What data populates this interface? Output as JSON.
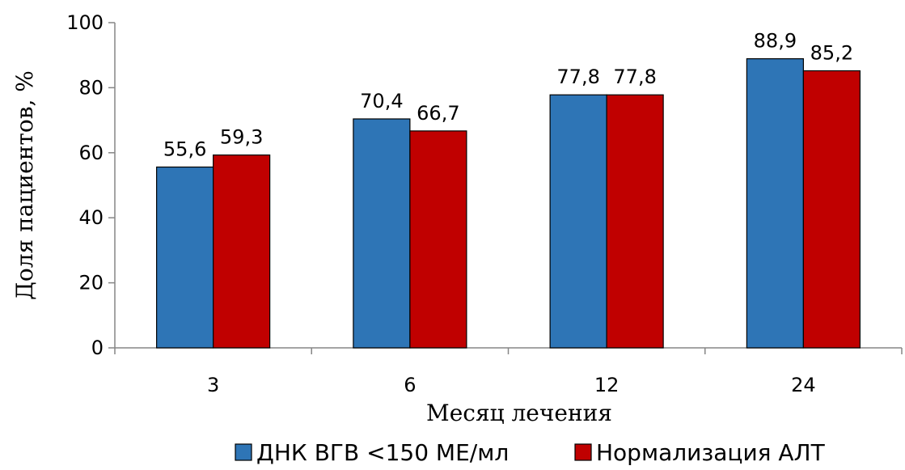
{
  "chart_data": {
    "type": "bar",
    "categories": [
      "3",
      "6",
      "12",
      "24"
    ],
    "series": [
      {
        "name": "ДНК ВГВ <150 МЕ/мл",
        "values": [
          55.6,
          70.4,
          77.8,
          88.9
        ],
        "labels": [
          "55,6",
          "70,4",
          "77,8",
          "88,9"
        ],
        "color": "#2e75b6"
      },
      {
        "name": "Нормализация АЛТ",
        "values": [
          59.3,
          66.7,
          77.8,
          85.2
        ],
        "labels": [
          "59,3",
          "66,7",
          "77,8",
          "85,2"
        ],
        "color": "#c00000"
      }
    ],
    "xlabel": "Месяц лечения",
    "ylabel": "Доля пациентов,  %",
    "ylim": [
      0,
      100
    ],
    "yticks": [
      "0",
      "20",
      "40",
      "60",
      "80",
      "100"
    ],
    "grid": false,
    "legend_position": "bottom"
  }
}
